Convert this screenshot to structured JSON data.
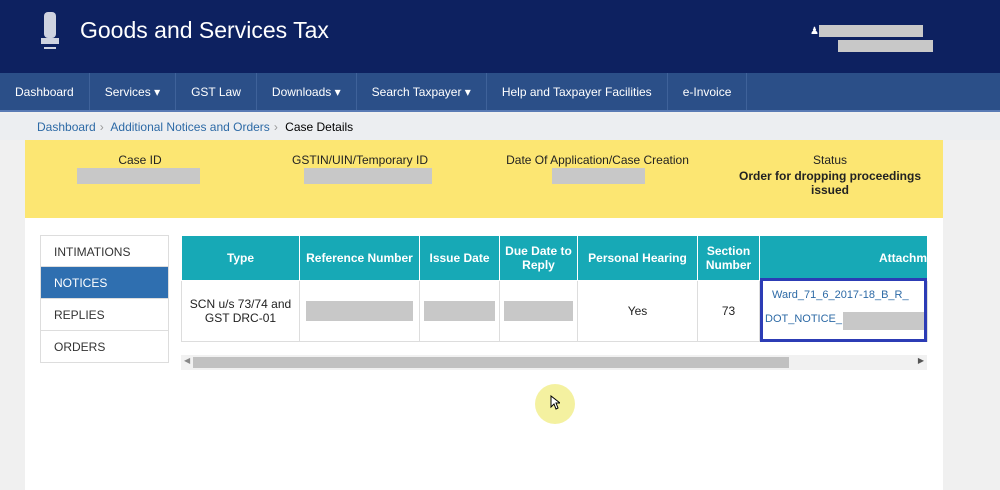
{
  "header": {
    "title": "Goods and Services Tax"
  },
  "nav": [
    "Dashboard",
    "Services ▾",
    "GST Law",
    "Downloads ▾",
    "Search Taxpayer ▾",
    "Help and Taxpayer Facilities",
    "e-Invoice"
  ],
  "breadcrumb": [
    "Dashboard",
    "Additional Notices and Orders",
    "Case Details"
  ],
  "case": {
    "case_id_label": "Case ID",
    "gstin_label": "GSTIN/UIN/Temporary ID",
    "date_label": "Date Of Application/Case Creation",
    "status_label": "Status",
    "status_value": "Order for dropping proceedings issued"
  },
  "sidebar": [
    "INTIMATIONS",
    "NOTICES",
    "REPLIES",
    "ORDERS"
  ],
  "table": {
    "headers": [
      "Type",
      "Reference Number",
      "Issue Date",
      "Due Date to Reply",
      "Personal Hearing",
      "Section Number",
      "Attachments"
    ],
    "row": {
      "type": "SCN u/s 73/74 and GST DRC-01",
      "hearing": "Yes",
      "section": "73",
      "att1": "Ward_71_6_2017-18_B_R_",
      "att2": "DOT_NOTICE_"
    }
  },
  "colors": {
    "header": "#0d2160",
    "nav": "#2b4f88",
    "status_band": "#fce672",
    "table_header": "#17a9b6",
    "active_tab": "#2f6fb0"
  }
}
